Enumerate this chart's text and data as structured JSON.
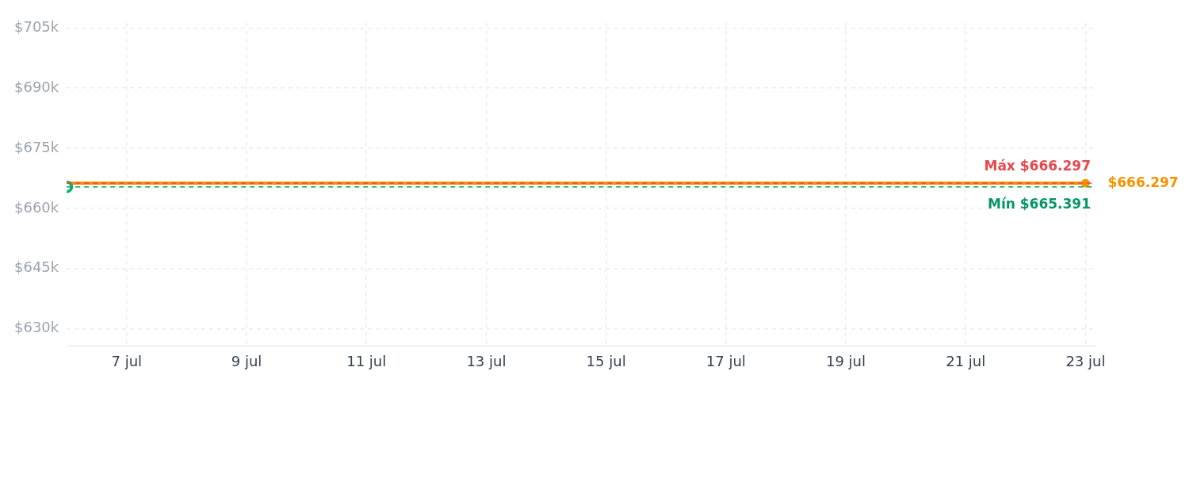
{
  "chart_data": {
    "type": "step",
    "x": [
      "--07-06",
      "--07-09",
      "--07-23"
    ],
    "series": [
      {
        "color": "#f59300",
        "values": [
          665.391,
          666.297,
          666.297
        ],
        "marker": "none"
      },
      {
        "type": "scatter",
        "color": "#f59300",
        "x": [
          "--07-23"
        ],
        "values": [
          666.297
        ],
        "marker": "circle"
      },
      {
        "type": "scatter",
        "color": "#10b076",
        "x": [
          "--07-06"
        ],
        "values": [
          665.391
        ],
        "marker": "circle"
      }
    ],
    "xlim": [
      "--07-06",
      "--07-23T04:00"
    ],
    "xticks": [
      {
        "value": "--07-07",
        "label": "7 jul"
      },
      {
        "value": "--07-09",
        "label": "9 jul"
      },
      {
        "value": "--07-11",
        "label": "11 jul"
      },
      {
        "value": "--07-13",
        "label": "13 jul"
      },
      {
        "value": "--07-15",
        "label": "15 jul"
      },
      {
        "value": "--07-17",
        "label": "17 jul"
      },
      {
        "value": "--07-19",
        "label": "19 jul"
      },
      {
        "value": "--07-21",
        "label": "21 jul"
      },
      {
        "value": "--07-23",
        "label": "23 jul"
      }
    ],
    "ylim": [
      625.7,
      706.3
    ],
    "yticks": [
      {
        "value": 630,
        "label": "$630k"
      },
      {
        "value": 645,
        "label": "$645k"
      },
      {
        "value": 660,
        "label": "$660k"
      },
      {
        "value": 675,
        "label": "$675k"
      },
      {
        "value": 690,
        "label": "$690k"
      },
      {
        "value": 705,
        "label": "$705k"
      }
    ],
    "ref_lines": [
      {
        "axis": "y",
        "value": 666.297,
        "label": "Máx $666.297",
        "color": "#e5484d",
        "line_style": "dashed"
      },
      {
        "axis": "y",
        "value": 665.391,
        "label": "Mín $665.391",
        "color": "#059669",
        "line_style": "dashed"
      }
    ],
    "annotations": [
      {
        "text": "$666.297",
        "x": "--07-23",
        "y": 666.297
      }
    ],
    "grid": true,
    "legend": false,
    "line_style": "solid"
  }
}
